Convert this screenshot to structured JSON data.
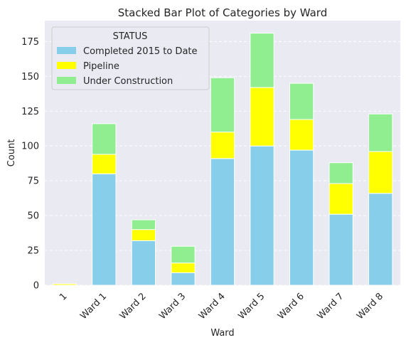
{
  "chart_data": {
    "type": "bar",
    "stacked": true,
    "title": "Stacked Bar Plot of Categories by Ward",
    "xlabel": "Ward",
    "ylabel": "Count",
    "ylim": [
      0,
      190
    ],
    "yticks": [
      0,
      25,
      50,
      75,
      100,
      125,
      150,
      175
    ],
    "grid": true,
    "legend_title": "STATUS",
    "legend_position": "top-left",
    "categories": [
      "1",
      "Ward 1",
      "Ward 2",
      "Ward 3",
      "Ward 4",
      "Ward 5",
      "Ward 6",
      "Ward 7",
      "Ward 8"
    ],
    "series": [
      {
        "name": "Completed 2015 to Date",
        "color": "#87CEEB",
        "values": [
          0,
          80,
          32,
          9,
          91,
          100,
          97,
          51,
          66
        ]
      },
      {
        "name": "Pipeline",
        "color": "#FFFF00",
        "values": [
          1,
          14,
          8,
          7,
          19,
          42,
          22,
          22,
          30
        ]
      },
      {
        "name": "Under Construction",
        "color": "#90EE90",
        "values": [
          0,
          22,
          7,
          12,
          39,
          39,
          26,
          15,
          27
        ]
      }
    ]
  }
}
